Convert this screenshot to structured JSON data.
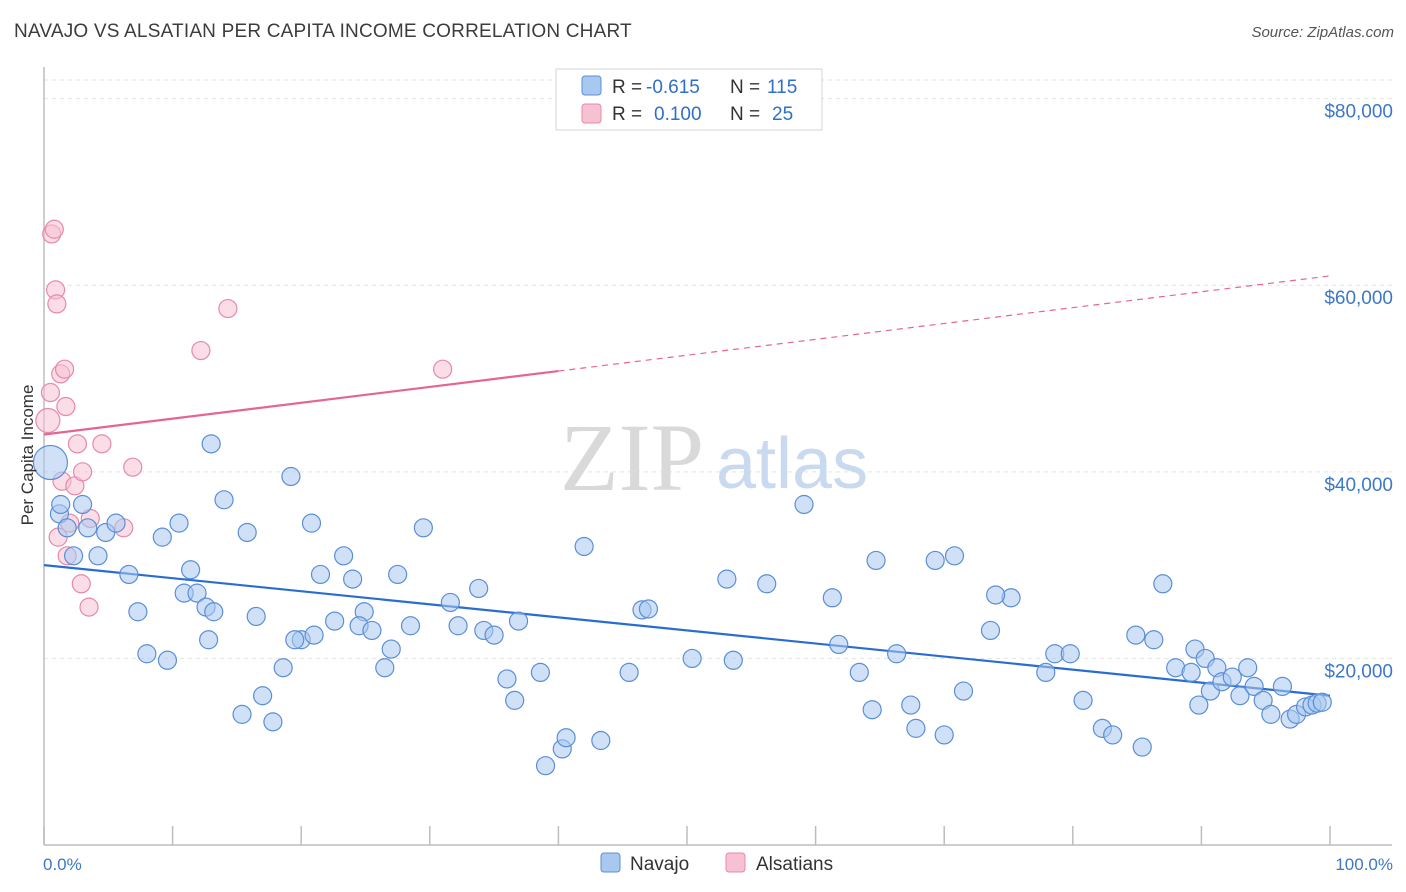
{
  "title": "NAVAJO VS ALSATIAN PER CAPITA INCOME CORRELATION CHART",
  "source": "Source: ZipAtlas.com",
  "watermark": {
    "zip": "ZIP",
    "atlas": "atlas"
  },
  "colors": {
    "navajo_fill": "#a9c8f0",
    "navajo_stroke": "#5a8fd6",
    "navajo_line": "#2a6dd0",
    "alsatian_fill": "#f6c1d1",
    "alsatian_stroke": "#e68aa8",
    "alsatian_line": "#e4668f",
    "tick_text": "#3c78c8",
    "grid": "#e3e3e3"
  },
  "legend": {
    "rows": [
      {
        "r_label": "R =",
        "r_value": "-0.615",
        "n_label": "N =",
        "n_value": "115"
      },
      {
        "r_label": "R =",
        "r_value": "0.100",
        "n_label": "N =",
        "n_value": "25"
      }
    ]
  },
  "chart_data": {
    "type": "scatter",
    "title": "NAVAJO VS ALSATIAN PER CAPITA INCOME CORRELATION CHART",
    "xlabel": "",
    "ylabel": "Per Capita Income",
    "xlim": [
      0,
      100
    ],
    "ylim": [
      0,
      82000
    ],
    "x_tick_labels": [
      "0.0%",
      "100.0%"
    ],
    "y_ticks": [
      20000,
      40000,
      60000,
      80000
    ],
    "y_tick_labels": [
      "$20,000",
      "$40,000",
      "$60,000",
      "$80,000"
    ],
    "grid": true,
    "legend_position": "top-center",
    "series": [
      {
        "name": "Navajo",
        "r": -0.615,
        "n": 115,
        "trend": {
          "x": [
            0,
            100
          ],
          "y": [
            30000,
            16000
          ],
          "dashed_from": null
        },
        "points": [
          [
            0.5,
            41000
          ],
          [
            1.2,
            35500
          ],
          [
            1.3,
            36500
          ],
          [
            1.8,
            34000
          ],
          [
            2.3,
            31000
          ],
          [
            3.0,
            36500
          ],
          [
            3.4,
            34000
          ],
          [
            4.2,
            31000
          ],
          [
            4.8,
            33500
          ],
          [
            5.6,
            34500
          ],
          [
            6.6,
            29000
          ],
          [
            7.3,
            25000
          ],
          [
            9.2,
            33000
          ],
          [
            8.0,
            20500
          ],
          [
            9.6,
            19800
          ],
          [
            10.5,
            34500
          ],
          [
            10.9,
            27000
          ],
          [
            11.4,
            29500
          ],
          [
            11.9,
            27000
          ],
          [
            12.6,
            25500
          ],
          [
            13.2,
            25000
          ],
          [
            12.8,
            22000
          ],
          [
            13.0,
            43000
          ],
          [
            14.0,
            37000
          ],
          [
            15.4,
            14000
          ],
          [
            15.8,
            33500
          ],
          [
            16.5,
            24500
          ],
          [
            17.0,
            16000
          ],
          [
            17.8,
            13200
          ],
          [
            18.6,
            19000
          ],
          [
            19.2,
            39500
          ],
          [
            20.0,
            22000
          ],
          [
            20.8,
            34500
          ],
          [
            19.5,
            22000
          ],
          [
            21.5,
            29000
          ],
          [
            22.6,
            24000
          ],
          [
            23.3,
            31000
          ],
          [
            24.0,
            28500
          ],
          [
            24.9,
            25000
          ],
          [
            24.5,
            23500
          ],
          [
            25.5,
            23000
          ],
          [
            26.5,
            19000
          ],
          [
            27.0,
            21000
          ],
          [
            27.5,
            29000
          ],
          [
            28.5,
            23500
          ],
          [
            29.5,
            34000
          ],
          [
            31.6,
            26000
          ],
          [
            32.2,
            23500
          ],
          [
            33.8,
            27500
          ],
          [
            34.2,
            23000
          ],
          [
            35.0,
            22500
          ],
          [
            36.0,
            17800
          ],
          [
            36.6,
            15500
          ],
          [
            36.9,
            24000
          ],
          [
            39.0,
            8500
          ],
          [
            38.6,
            18500
          ],
          [
            40.3,
            10300
          ],
          [
            40.6,
            11500
          ],
          [
            43.3,
            11200
          ],
          [
            45.5,
            18500
          ],
          [
            46.5,
            25200
          ],
          [
            47.0,
            25300
          ],
          [
            50.4,
            20000
          ],
          [
            53.1,
            28500
          ],
          [
            56.2,
            28000
          ],
          [
            59.1,
            36500
          ],
          [
            61.3,
            26500
          ],
          [
            63.4,
            18500
          ],
          [
            64.4,
            14500
          ],
          [
            64.7,
            30500
          ],
          [
            66.3,
            20500
          ],
          [
            67.4,
            15000
          ],
          [
            67.8,
            12500
          ],
          [
            69.3,
            30500
          ],
          [
            70.0,
            11800
          ],
          [
            70.8,
            31000
          ],
          [
            71.5,
            16500
          ],
          [
            73.6,
            23000
          ],
          [
            75.2,
            26500
          ],
          [
            77.9,
            18500
          ],
          [
            78.6,
            20500
          ],
          [
            79.8,
            20500
          ],
          [
            80.8,
            15500
          ],
          [
            82.3,
            12500
          ],
          [
            83.1,
            11800
          ],
          [
            84.9,
            22500
          ],
          [
            85.4,
            10500
          ],
          [
            86.3,
            22000
          ],
          [
            87.0,
            28000
          ],
          [
            88.0,
            19000
          ],
          [
            89.2,
            18500
          ],
          [
            89.5,
            21000
          ],
          [
            89.8,
            15000
          ],
          [
            90.3,
            20000
          ],
          [
            90.7,
            16500
          ],
          [
            91.2,
            19000
          ],
          [
            91.6,
            17500
          ],
          [
            92.4,
            18000
          ],
          [
            93.0,
            16000
          ],
          [
            93.6,
            19000
          ],
          [
            94.1,
            17000
          ],
          [
            94.8,
            15500
          ],
          [
            95.4,
            14000
          ],
          [
            96.3,
            17000
          ],
          [
            96.9,
            13500
          ],
          [
            97.4,
            14000
          ],
          [
            98.1,
            14800
          ],
          [
            98.6,
            15000
          ],
          [
            99.0,
            15200
          ],
          [
            99.4,
            15300
          ],
          [
            21.0,
            22500
          ],
          [
            42.0,
            32000
          ],
          [
            74.0,
            26800
          ],
          [
            61.8,
            21500
          ],
          [
            53.6,
            19800
          ]
        ]
      },
      {
        "name": "Alsatians",
        "r": 0.1,
        "n": 25,
        "trend": {
          "x": [
            0,
            100
          ],
          "y": [
            44000,
            61000
          ],
          "dashed_from": 40
        },
        "points": [
          [
            0.3,
            45500
          ],
          [
            0.5,
            48500
          ],
          [
            0.6,
            65500
          ],
          [
            0.8,
            66000
          ],
          [
            0.9,
            59500
          ],
          [
            1.0,
            58000
          ],
          [
            1.1,
            33000
          ],
          [
            1.3,
            50500
          ],
          [
            1.4,
            39000
          ],
          [
            1.6,
            51000
          ],
          [
            1.7,
            47000
          ],
          [
            1.8,
            31000
          ],
          [
            2.0,
            34500
          ],
          [
            2.4,
            38500
          ],
          [
            2.6,
            43000
          ],
          [
            2.9,
            28000
          ],
          [
            3.0,
            40000
          ],
          [
            3.5,
            25500
          ],
          [
            3.6,
            35000
          ],
          [
            4.5,
            43000
          ],
          [
            6.2,
            34000
          ],
          [
            6.9,
            40500
          ],
          [
            12.2,
            53000
          ],
          [
            14.3,
            57500
          ],
          [
            31.0,
            51000
          ]
        ]
      }
    ]
  },
  "bottom_legend": [
    {
      "label": "Navajo"
    },
    {
      "label": "Alsatians"
    }
  ]
}
